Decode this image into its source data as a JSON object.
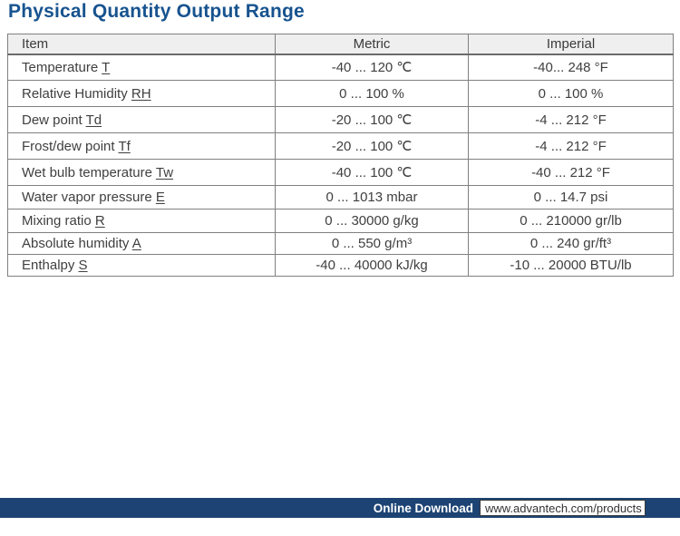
{
  "title": "Physical Quantity Output Range",
  "table": {
    "headers": {
      "item": "Item",
      "metric": "Metric",
      "imperial": "Imperial"
    },
    "rows": [
      {
        "item": "Temperature",
        "symbol": "T",
        "metric": "-40 ... 120 ℃",
        "imperial": "-40... 248 °F"
      },
      {
        "item": "Relative Humidity",
        "symbol": "RH",
        "metric": "0 ... 100 %",
        "imperial": "0 ... 100 %"
      },
      {
        "item": "Dew point",
        "symbol": "Td",
        "metric": "-20 ... 100 ℃",
        "imperial": "-4 ... 212 °F"
      },
      {
        "item": "Frost/dew point",
        "symbol": "Tf",
        "metric": "-20 ... 100 ℃",
        "imperial": "-4 ... 212 °F"
      },
      {
        "item": "Wet bulb temperature",
        "symbol": "Tw",
        "metric": "-40 ... 100 ℃",
        "imperial": "-40 ... 212 °F"
      },
      {
        "item": "Water vapor pressure",
        "symbol": "E",
        "metric": "0 ... 1013 mbar",
        "imperial": "0 ... 14.7 psi"
      },
      {
        "item": "Mixing ratio",
        "symbol": "R",
        "metric": "0 ... 30000 g/kg",
        "imperial": "0 ... 210000 gr/lb"
      },
      {
        "item": "Absolute humidity",
        "symbol": "A",
        "metric": "0 ... 550 g/m³",
        "imperial": "0 ... 240 gr/ft³"
      },
      {
        "item": "Enthalpy",
        "symbol": "S",
        "metric": "-40 ... 40000 kJ/kg",
        "imperial": "-10 ... 20000 BTU/lb"
      }
    ]
  },
  "footer": {
    "download_label": "Online Download",
    "url": "www.advantech.com/products"
  },
  "colors": {
    "title_blue": "#17538f",
    "footer_navy": "#1c4373",
    "border_gray": "#808080",
    "header_bg": "#efefef",
    "text": "#3f3f3f"
  }
}
